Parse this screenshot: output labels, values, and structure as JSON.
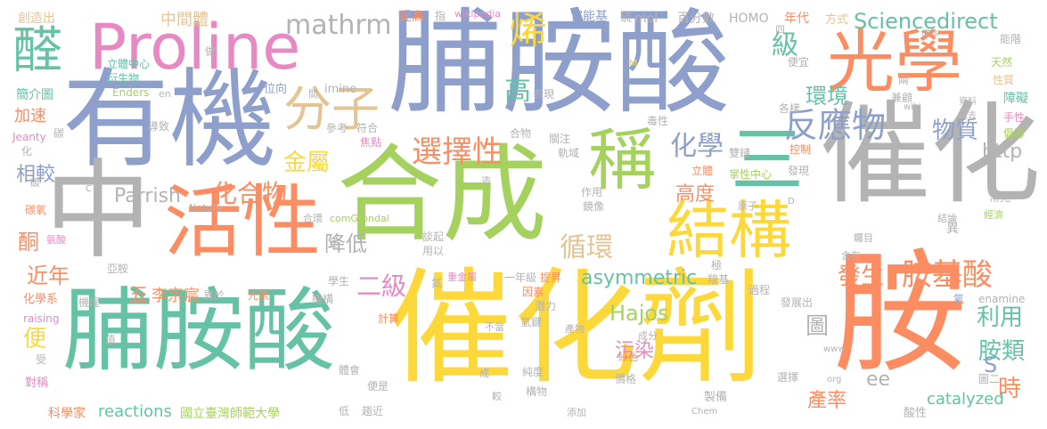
{
  "palette": {
    "green": "#a5d25e",
    "yellow": "#fdd83a",
    "blue": "#8d9fca",
    "orange": "#fc8d62",
    "teal": "#66c2a5",
    "gray": "#b3b3b3",
    "pink": "#e78ac3",
    "tan": "#e5c494"
  },
  "words": [
    "合成",
    "催化劑",
    "脯胺酸",
    "催化",
    "脯胺酸",
    "有機",
    "中",
    "胺",
    "光學",
    "Proline",
    "活性",
    "結構",
    "醛",
    "稱",
    "分子",
    "三",
    "烯",
    "反應物",
    "選擇性",
    "化合物",
    "mathrm",
    "Sciencedirect",
    "胺基酸",
    "物質",
    "高",
    "級",
    "環境",
    "化學",
    "金屬",
    "循環",
    "Parrish",
    "發生",
    "近年",
    "相較",
    "http",
    "利用",
    "胺類",
    "asymmetric",
    "降低",
    "二級",
    "Hajos",
    "高度",
    "時",
    "產率",
    "污染",
    "圖",
    "酮",
    "便",
    "五",
    "李宗宸",
    "S",
    "ee",
    "reactions",
    "國立臺灣師範大學",
    "catalyzed",
    "加速",
    "簡介圖",
    "中間體",
    "提高",
    "官能基",
    "mol",
    "百分數",
    "HOMO",
    "年代",
    "方式",
    "創造出",
    "立體中心",
    "衍生物",
    "Enders",
    "imine",
    "位向",
    "做",
    "Jeanty",
    "碳",
    "參考",
    "符合",
    "焦點",
    "合物",
    "關注",
    "軌域",
    "毒性",
    "表現",
    "各樣",
    "兼顧",
    "兩",
    "天然",
    "性質",
    "障礙",
    "手性",
    "倡導",
    "能階",
    "經濟",
    "常見",
    "結論",
    "異",
    "發現",
    "控制",
    "雙鏈",
    "掌性中心",
    "立體",
    "原子",
    "作用",
    "鏡像",
    "談起",
    "用以",
    "合環",
    "comGrondal",
    "Nature",
    "碳氧",
    "氨酸",
    "亞胺",
    "機理",
    "化學系",
    "raising",
    "元素",
    "異於",
    "機構",
    "學生",
    "計算",
    "一年級",
    "提昇",
    "因素",
    "潛力",
    "重金屬",
    "氮",
    "羧基",
    "極",
    "過程",
    "含有",
    "矚目",
    "發展出",
    "enamine",
    "氧",
    "酸性",
    "圖二",
    "製備",
    "選擇",
    "綠色",
    "價格",
    "不當",
    "氫鍵",
    "產物",
    "成分",
    "純度",
    "構物",
    "添加",
    "便是",
    "體會",
    "趨近",
    "科學家",
    "對稱",
    "受",
    "值",
    "低",
    "wikipedia",
    "指",
    "硫",
    "四",
    "成本",
    "便宜",
    "導致",
    "化",
    "C",
    "en",
    "M",
    "wiki",
    "資料",
    "離去",
    "D",
    "www",
    "org",
    "Chem",
    "造",
    "成",
    "較",
    "更",
    "間",
    "碳"
  ]
}
